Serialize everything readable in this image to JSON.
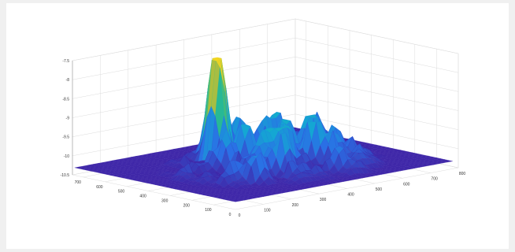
{
  "chart_data": {
    "type": "surface",
    "title": "",
    "xlabel": "",
    "ylabel": "",
    "zlabel": "",
    "x_range": [
      0,
      800
    ],
    "y_range": [
      0,
      750
    ],
    "z_range": [
      -10.5,
      -7.5
    ],
    "x_ticks": [
      "0",
      "100",
      "200",
      "300",
      "400",
      "500",
      "600",
      "700",
      "800"
    ],
    "y_ticks": [
      "0",
      "100",
      "200",
      "300",
      "400",
      "500",
      "600",
      "700"
    ],
    "z_ticks": [
      "-10.5",
      "-10",
      "-9.5",
      "-9",
      "-8.5",
      "-8",
      "-7.5"
    ],
    "x_tick_values": [
      0,
      100,
      200,
      300,
      400,
      500,
      600,
      700,
      800
    ],
    "y_tick_values": [
      0,
      100,
      200,
      300,
      400,
      500,
      600,
      700
    ],
    "z_tick_values": [
      -10.5,
      -10,
      -9.5,
      -9,
      -8.5,
      -8,
      -7.5
    ],
    "surface_base_level": -10.3,
    "surface_typical_max": -9.3,
    "peaks": [
      {
        "x": 300,
        "y": 480,
        "z": -8.0
      },
      {
        "x": 320,
        "y": 500,
        "z": -7.9
      },
      {
        "x": 340,
        "y": 520,
        "z": -7.9
      }
    ],
    "grid": true,
    "colormap": "parula",
    "colors": {
      "colormap_low": "#3e26a8",
      "colormap_mid": "#2ab4c5",
      "colormap_high": "#f8d81d",
      "pane": "#ffffff",
      "gridline": "#dcdcdc",
      "figure_bg": "#f0f0f0"
    }
  }
}
